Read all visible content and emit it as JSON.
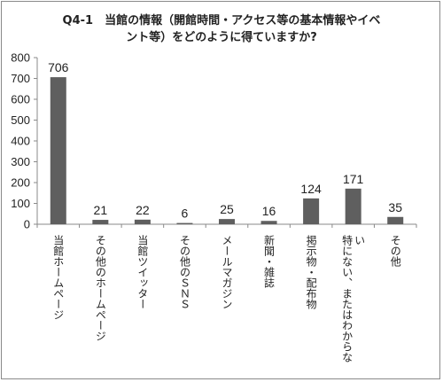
{
  "chart_data": {
    "type": "bar",
    "title": "Q4-1　当館の情報（開館時間・アクセス等の基本情報やイベント等）をどのように得ていますか?",
    "title_lines": [
      "Q4-1　当館の情報（開館時間・アクセス等の基本情報やイベ",
      "ント等）をどのように得ていますか?"
    ],
    "categories": [
      "当館ホームページ",
      "その他のホームページ",
      "当館ツイッター",
      "その他のSNS",
      "メールマガジン",
      "新聞・雑誌",
      "掲示物・配布物",
      "特にない、またはわからない",
      "その他"
    ],
    "category_columns": [
      [
        "当館ホームページ"
      ],
      [
        "その他のホームページ"
      ],
      [
        "当館ツイッター"
      ],
      [
        "その他のＳＮＳ"
      ],
      [
        "メールマガジン"
      ],
      [
        "新聞・雑誌"
      ],
      [
        "掲示物・配布物"
      ],
      [
        "特にない、またはわからな",
        "い"
      ],
      [
        "その他"
      ]
    ],
    "values": [
      706,
      21,
      22,
      6,
      25,
      16,
      124,
      171,
      35
    ],
    "ylim": [
      0,
      800
    ],
    "yticks": [
      0,
      100,
      200,
      300,
      400,
      500,
      600,
      700,
      800
    ],
    "xlabel": "",
    "ylabel": "",
    "grid": false,
    "legend": "none",
    "bar_color": "#5f5f5f"
  }
}
